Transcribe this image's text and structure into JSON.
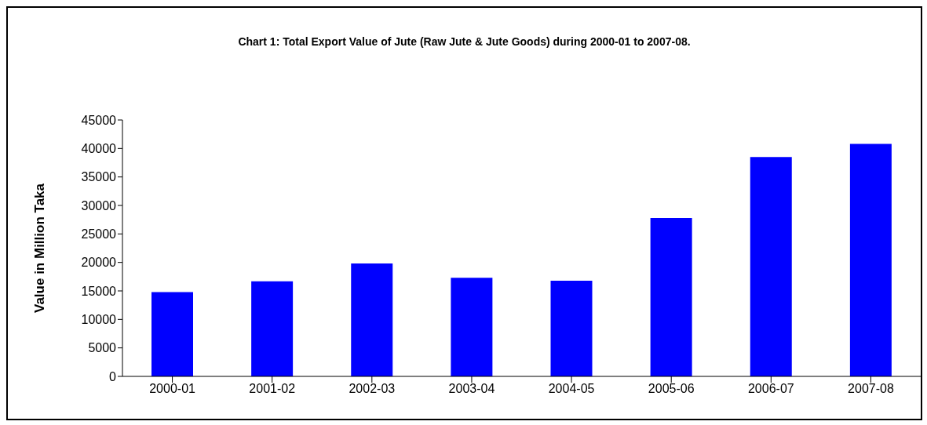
{
  "chart_data": {
    "type": "bar",
    "title": "Chart 1:  Total Export Value of Jute (Raw Jute & Jute Goods) during 2000-01 to 2007-08.",
    "ylabel": "Value in Million Taka",
    "categories": [
      "2000-01",
      "2001-02",
      "2002-03",
      "2003-04",
      "2004-05",
      "2005-06",
      "2006-07",
      "2007-08"
    ],
    "values": [
      14800,
      16700,
      19800,
      17300,
      16800,
      27800,
      38500,
      40800
    ],
    "color": "#0000ff",
    "ylim": [
      0,
      45000
    ],
    "yticks": [
      0,
      5000,
      10000,
      15000,
      20000,
      25000,
      30000,
      35000,
      40000,
      45000
    ],
    "grid": false,
    "legend": false
  }
}
